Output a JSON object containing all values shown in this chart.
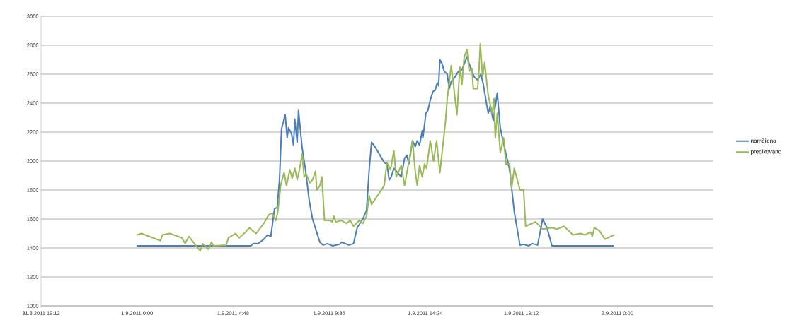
{
  "chart_data": {
    "type": "line",
    "xlim": [
      "2011-08-31T19:12",
      "2011-09-02T04:48"
    ],
    "xticks": [
      {
        "value": "2011-08-31T19:12",
        "label": "31.8.2011 19:12"
      },
      {
        "value": "2011-09-01T00:00",
        "label": "1.9.2011 0:00"
      },
      {
        "value": "2011-09-01T04:48",
        "label": "1.9.2011 4:48"
      },
      {
        "value": "2011-09-01T09:36",
        "label": "1.9.2011 9:36"
      },
      {
        "value": "2011-09-01T14:24",
        "label": "1.9.2011 14:24"
      },
      {
        "value": "2011-09-01T19:12",
        "label": "1.9.2011 19:12"
      },
      {
        "value": "2011-09-02T00:00",
        "label": "2.9.2011 0:00"
      },
      {
        "value": "2011-09-02T04:48",
        "label": null
      }
    ],
    "ylim": [
      1000,
      3000
    ],
    "yticks": [
      1000,
      1200,
      1400,
      1600,
      1800,
      2000,
      2200,
      2400,
      2600,
      2800,
      3000
    ],
    "grid": "y",
    "legend": "right",
    "series": [
      {
        "name": "naměřeno",
        "color": "#4a7ebb",
        "x": [
          "2011-09-01T00:00",
          "2011-09-01T05:42",
          "2011-09-01T05:48",
          "2011-09-01T06:03",
          "2011-09-01T06:20",
          "2011-09-01T06:31",
          "2011-09-01T06:41",
          "2011-09-01T06:52",
          "2011-09-01T07:00",
          "2011-09-01T07:07",
          "2011-09-01T07:13",
          "2011-09-01T07:24",
          "2011-09-01T07:30",
          "2011-09-01T07:34",
          "2011-09-01T07:43",
          "2011-09-01T07:49",
          "2011-09-01T07:53",
          "2011-09-01T08:00",
          "2011-09-01T08:04",
          "2011-09-01T08:15",
          "2011-09-01T08:25",
          "2011-09-01T08:36",
          "2011-09-01T08:46",
          "2011-09-01T08:57",
          "2011-09-01T09:08",
          "2011-09-01T09:18",
          "2011-09-01T09:31",
          "2011-09-01T09:46",
          "2011-09-01T10:07",
          "2011-09-01T10:13",
          "2011-09-01T10:35",
          "2011-09-01T10:49",
          "2011-09-01T11:00",
          "2011-09-01T11:17",
          "2011-09-01T11:28",
          "2011-09-01T11:36",
          "2011-09-01T11:43",
          "2011-09-01T11:53",
          "2011-09-01T12:21",
          "2011-09-01T12:29",
          "2011-09-01T12:36",
          "2011-09-01T12:42",
          "2011-09-01T12:50",
          "2011-09-01T13:12",
          "2011-09-01T13:22",
          "2011-09-01T13:29",
          "2011-09-01T13:35",
          "2011-09-01T13:46",
          "2011-09-01T13:54",
          "2011-09-01T14:00",
          "2011-09-01T14:07",
          "2011-09-01T14:15",
          "2011-09-01T14:17",
          "2011-09-01T14:26",
          "2011-09-01T14:32",
          "2011-09-01T14:39",
          "2011-09-01T14:47",
          "2011-09-01T14:54",
          "2011-09-01T15:00",
          "2011-09-01T15:04",
          "2011-09-01T15:08",
          "2011-09-01T15:15",
          "2011-09-01T15:21",
          "2011-09-01T15:30",
          "2011-09-01T15:36",
          "2011-09-01T15:42",
          "2011-09-01T15:53",
          "2011-09-01T16:04",
          "2011-09-01T16:14",
          "2011-09-01T16:29",
          "2011-09-01T16:36",
          "2011-09-01T16:44",
          "2011-09-01T16:51",
          "2011-09-01T17:01",
          "2011-09-01T17:11",
          "2011-09-01T17:18",
          "2011-09-01T17:29",
          "2011-09-01T17:33",
          "2011-09-01T17:39",
          "2011-09-01T17:48",
          "2011-09-01T17:54",
          "2011-09-01T18:00",
          "2011-09-01T18:09",
          "2011-09-01T18:22",
          "2011-09-01T18:37",
          "2011-09-01T18:51",
          "2011-09-01T19:08",
          "2011-09-01T19:19",
          "2011-09-01T19:34",
          "2011-09-01T19:46",
          "2011-09-01T20:01",
          "2011-09-01T20:16",
          "2011-09-01T20:29",
          "2011-09-01T20:44",
          "2011-09-01T23:48"
        ],
        "values": [
          1415,
          1415,
          1430,
          1430,
          1460,
          1490,
          1480,
          1670,
          1680,
          1870,
          2220,
          2320,
          2160,
          2230,
          2190,
          2110,
          2290,
          2130,
          2350,
          2090,
          1940,
          1730,
          1600,
          1520,
          1440,
          1420,
          1430,
          1415,
          1425,
          1440,
          1420,
          1430,
          1540,
          1600,
          1660,
          1940,
          2130,
          2100,
          1990,
          1980,
          1870,
          1890,
          1950,
          1890,
          2020,
          2040,
          1980,
          2140,
          2100,
          2140,
          2110,
          2210,
          2160,
          2330,
          2350,
          2420,
          2480,
          2490,
          2540,
          2520,
          2700,
          2670,
          2620,
          2600,
          2500,
          2550,
          2580,
          2620,
          2630,
          2720,
          2670,
          2620,
          2580,
          2560,
          2600,
          2530,
          2380,
          2330,
          2380,
          2280,
          2380,
          2470,
          2230,
          2090,
          1940,
          1650,
          1420,
          1425,
          1415,
          1430,
          1420,
          1600,
          1540,
          1415,
          1415
        ]
      },
      {
        "name": "predikováno",
        "color": "#98b954",
        "x": [
          "2011-09-01T00:00",
          "2011-09-01T00:13",
          "2011-09-01T01:10",
          "2011-09-01T01:16",
          "2011-09-01T01:38",
          "2011-09-01T02:14",
          "2011-09-01T02:24",
          "2011-09-01T02:35",
          "2011-09-01T02:52",
          "2011-09-01T03:09",
          "2011-09-01T03:17",
          "2011-09-01T03:34",
          "2011-09-01T03:43",
          "2011-09-01T03:49",
          "2011-09-01T04:27",
          "2011-09-01T04:34",
          "2011-09-01T04:55",
          "2011-09-01T05:06",
          "2011-09-01T05:25",
          "2011-09-01T05:37",
          "2011-09-01T05:46",
          "2011-09-01T05:57",
          "2011-09-01T06:20",
          "2011-09-01T06:35",
          "2011-09-01T06:45",
          "2011-09-01T06:56",
          "2011-09-01T07:02",
          "2011-09-01T07:11",
          "2011-09-01T07:21",
          "2011-09-01T07:28",
          "2011-09-01T07:38",
          "2011-09-01T07:45",
          "2011-09-01T07:53",
          "2011-09-01T08:00",
          "2011-09-01T08:06",
          "2011-09-01T08:15",
          "2011-09-01T08:21",
          "2011-09-01T08:27",
          "2011-09-01T08:38",
          "2011-09-01T08:46",
          "2011-09-01T08:55",
          "2011-09-01T08:59",
          "2011-09-01T09:08",
          "2011-09-01T09:14",
          "2011-09-01T09:22",
          "2011-09-01T09:39",
          "2011-09-01T09:46",
          "2011-09-01T09:50",
          "2011-09-01T09:56",
          "2011-09-01T10:13",
          "2011-09-01T10:28",
          "2011-09-01T10:39",
          "2011-09-01T10:49",
          "2011-09-01T11:06",
          "2011-09-01T11:17",
          "2011-09-01T11:28",
          "2011-09-01T11:36",
          "2011-09-01T11:43",
          "2011-09-01T12:21",
          "2011-09-01T12:29",
          "2011-09-01T12:40",
          "2011-09-01T12:50",
          "2011-09-01T12:57",
          "2011-09-01T13:12",
          "2011-09-01T13:22",
          "2011-09-01T13:46",
          "2011-09-01T13:54",
          "2011-09-01T14:00",
          "2011-09-01T14:07",
          "2011-09-01T14:15",
          "2011-09-01T14:22",
          "2011-09-01T14:28",
          "2011-09-01T14:39",
          "2011-09-01T14:49",
          "2011-09-01T14:58",
          "2011-09-01T15:08",
          "2011-09-01T15:25",
          "2011-09-01T15:30",
          "2011-09-01T15:42",
          "2011-09-01T15:51",
          "2011-09-01T15:59",
          "2011-09-01T16:08",
          "2011-09-01T16:14",
          "2011-09-01T16:21",
          "2011-09-01T16:29",
          "2011-09-01T16:36",
          "2011-09-01T16:44",
          "2011-09-01T16:48",
          "2011-09-01T17:01",
          "2011-09-01T17:05",
          "2011-09-01T17:09",
          "2011-09-01T17:16",
          "2011-09-01T17:22",
          "2011-09-01T17:33",
          "2011-09-01T17:45",
          "2011-09-01T17:50",
          "2011-09-01T17:54",
          "2011-09-01T18:00",
          "2011-09-01T18:09",
          "2011-09-01T18:19",
          "2011-09-01T18:26",
          "2011-09-01T18:37",
          "2011-09-01T18:43",
          "2011-09-01T18:51",
          "2011-09-01T19:08",
          "2011-09-01T19:19",
          "2011-09-01T19:25",
          "2011-09-01T19:55",
          "2011-09-01T20:16",
          "2011-09-01T20:44",
          "2011-09-01T20:59",
          "2011-09-01T21:20",
          "2011-09-01T21:47",
          "2011-09-01T22:09",
          "2011-09-01T22:23",
          "2011-09-01T22:40",
          "2011-09-01T22:45",
          "2011-09-01T22:51",
          "2011-09-01T23:06",
          "2011-09-01T23:23",
          "2011-09-01T23:50"
        ],
        "values": [
          1490,
          1500,
          1450,
          1490,
          1500,
          1470,
          1430,
          1480,
          1430,
          1380,
          1430,
          1390,
          1440,
          1415,
          1420,
          1470,
          1500,
          1470,
          1510,
          1540,
          1520,
          1500,
          1570,
          1630,
          1640,
          1590,
          1650,
          1840,
          1920,
          1830,
          1940,
          1880,
          1950,
          1870,
          1930,
          2050,
          1890,
          1910,
          1850,
          1870,
          1930,
          1800,
          1830,
          1890,
          1590,
          1590,
          1580,
          1620,
          1580,
          1590,
          1570,
          1590,
          1550,
          1590,
          1570,
          1620,
          1760,
          1700,
          1830,
          1990,
          1940,
          2070,
          1890,
          1970,
          1830,
          2140,
          1930,
          1830,
          1970,
          1890,
          1980,
          1950,
          2140,
          2000,
          2140,
          1920,
          2280,
          2430,
          2660,
          2480,
          2320,
          2650,
          2530,
          2720,
          2770,
          2620,
          2640,
          2500,
          2500,
          2620,
          2810,
          2580,
          2680,
          2450,
          2330,
          2430,
          2160,
          2330,
          2060,
          2160,
          1980,
          1980,
          1810,
          1950,
          1800,
          1800,
          1550,
          1580,
          1530,
          1540,
          1530,
          1550,
          1490,
          1500,
          1490,
          1510,
          1480,
          1540,
          1520,
          1460,
          1490
        ]
      }
    ]
  }
}
